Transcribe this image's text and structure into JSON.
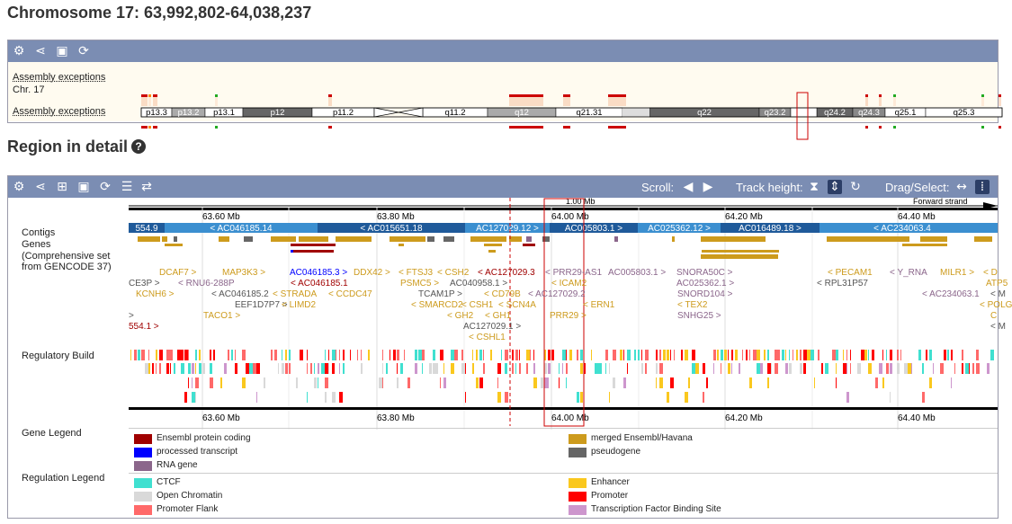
{
  "page_title": "Chromosome 17: 63,992,802-64,038,237",
  "overview": {
    "labels": {
      "assembly_top": "Assembly exceptions",
      "chr": "Chr. 17",
      "assembly_bottom": "Assembly exceptions"
    },
    "bands": [
      "p13.3",
      "p13.2",
      "p13.1",
      "p12",
      "p11.2",
      "q11.2",
      "q12",
      "q21.31",
      "q22",
      "q23.2",
      "q24.2",
      "q24.3",
      "q25.1",
      "q25.3"
    ]
  },
  "region_title": "Region in detail",
  "toolbar": {
    "scroll_label": "Scroll:",
    "track_height_label": "Track height:",
    "drag_label": "Drag/Select:"
  },
  "ruler": {
    "scale": "1.00 Mb",
    "strand": "Forward strand",
    "ticks": [
      "63.60 Mb",
      "63.80 Mb",
      "64.00 Mb",
      "64.20 Mb",
      "64.40 Mb"
    ]
  },
  "tracks": {
    "contigs": "Contigs",
    "genes": "Genes",
    "genes_sub": "(Comprehensive set from GENCODE 37)",
    "regulatory": "Regulatory Build",
    "gene_legend": "Gene Legend",
    "regulation_legend": "Regulation Legend"
  },
  "contigs": [
    "554.9",
    "< AC046185.14",
    "< AC015651.18",
    "AC127029.12 >",
    "AC005803.1 >",
    "AC025362.12 >",
    "AC016489.18 >",
    "< AC234063.4"
  ],
  "gene_labels": [
    {
      "t": "DCAF7 >",
      "c": "gold"
    },
    {
      "t": "MAP3K3 >",
      "c": "gold"
    },
    {
      "t": "AC046185.3 >",
      "c": "blue"
    },
    {
      "t": "DDX42 >",
      "c": "gold"
    },
    {
      "t": "< FTSJ3",
      "c": "gold"
    },
    {
      "t": "< CSH2",
      "c": "gold"
    },
    {
      "t": "< AC127029.3",
      "c": "red"
    },
    {
      "t": "< PRR29-AS1",
      "c": "purple"
    },
    {
      "t": "AC005803.1 >",
      "c": "purple"
    },
    {
      "t": "SNORA50C >",
      "c": "purple"
    },
    {
      "t": "< PECAM1",
      "c": "gold"
    },
    {
      "t": "< Y_RNA",
      "c": "purple"
    },
    {
      "t": "MILR1 >",
      "c": "gold"
    },
    {
      "t": "< D",
      "c": "gold"
    },
    {
      "t": "CE3P >",
      "c": "gray"
    },
    {
      "t": "< RNU6-288P",
      "c": "purple"
    },
    {
      "t": "< AC046185.1",
      "c": "red"
    },
    {
      "t": "PSMC5 >",
      "c": "gold"
    },
    {
      "t": "AC040958.1 >",
      "c": "gray"
    },
    {
      "t": "< ICAM2",
      "c": "gold"
    },
    {
      "t": "AC025362.1 >",
      "c": "purple"
    },
    {
      "t": "< RPL31P57",
      "c": "gray"
    },
    {
      "t": "ATP5",
      "c": "gold"
    },
    {
      "t": "KCNH6 >",
      "c": "gold"
    },
    {
      "t": "< AC046185.2",
      "c": "gray"
    },
    {
      "t": "< STRADA",
      "c": "gold"
    },
    {
      "t": "< CCDC47",
      "c": "gold"
    },
    {
      "t": "TCAM1P >",
      "c": "gray"
    },
    {
      "t": "< CD79B",
      "c": "gold"
    },
    {
      "t": "< AC127029.2",
      "c": "purple"
    },
    {
      "t": "SNORD104 >",
      "c": "purple"
    },
    {
      "t": "< AC234063.1",
      "c": "purple"
    },
    {
      "t": "< M",
      "c": "gray"
    },
    {
      "t": "EEF1D7P7 >",
      "c": "gray"
    },
    {
      "t": "< LIMD2",
      "c": "gold"
    },
    {
      "t": "< SMARCD2",
      "c": "gold"
    },
    {
      "t": "< CSH1",
      "c": "gold"
    },
    {
      "t": "< SCN4A",
      "c": "gold"
    },
    {
      "t": "< ERN1",
      "c": "gold"
    },
    {
      "t": "< TEX2",
      "c": "gold"
    },
    {
      "t": "< POLG",
      "c": "gold"
    },
    {
      "t": ">",
      "c": "gray"
    },
    {
      "t": "TACO1 >",
      "c": "gold"
    },
    {
      "t": "< GH2",
      "c": "gold"
    },
    {
      "t": "< GH1",
      "c": "gold"
    },
    {
      "t": "PRR29 >",
      "c": "gold"
    },
    {
      "t": "SNHG25 >",
      "c": "purple"
    },
    {
      "t": "C",
      "c": "gold"
    },
    {
      "t": "554.1 >",
      "c": "red"
    },
    {
      "t": "AC127029.1 >",
      "c": "gray"
    },
    {
      "t": "< M",
      "c": "gray"
    },
    {
      "t": "< CSHL1",
      "c": "gold"
    }
  ],
  "gene_legend": [
    {
      "label": "Ensembl protein coding",
      "color": "#a00000"
    },
    {
      "label": "merged Ensembl/Havana",
      "color": "#cd9b1d"
    },
    {
      "label": "processed transcript",
      "color": "#0000ff"
    },
    {
      "label": "pseudogene",
      "color": "#666666"
    },
    {
      "label": "RNA gene",
      "color": "#8b668b"
    }
  ],
  "regulation_legend": [
    {
      "label": "CTCF",
      "color": "#40e0d0"
    },
    {
      "label": "Enhancer",
      "color": "#fac81e"
    },
    {
      "label": "Open Chromatin",
      "color": "#d9d9d9"
    },
    {
      "label": "Promoter",
      "color": "#ff0000"
    },
    {
      "label": "Promoter Flank",
      "color": "#ff6969"
    },
    {
      "label": "Transcription Factor Binding Site",
      "color": "#cd96cd"
    }
  ],
  "colors": {
    "toolbar": "#7b8db3",
    "gold": "#cd9b1d",
    "red": "#a00000",
    "blue": "#0000ff",
    "purple": "#8b668b",
    "gray": "#555555",
    "contig_dark": "#1f5a9a",
    "contig_light": "#3b8fd0"
  }
}
